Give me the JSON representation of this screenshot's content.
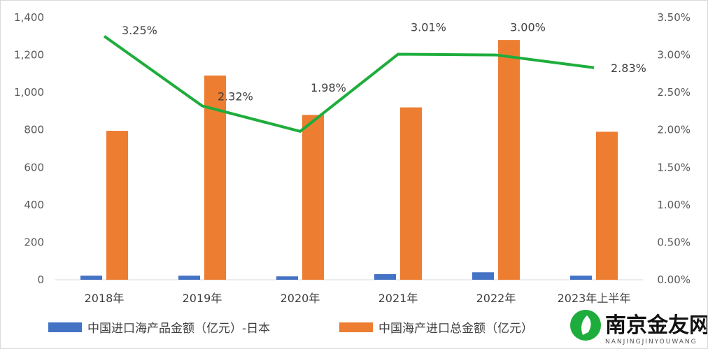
{
  "chart_data": {
    "type": "bar+line",
    "categories": [
      "2018年",
      "2019年",
      "2020年",
      "2021年",
      "2022年",
      "2023年上半年"
    ],
    "series": [
      {
        "name": "中国进口海产品金额（亿元）-日本",
        "type": "bar",
        "axis": "left",
        "color": "#4472c4",
        "values": [
          22,
          22,
          18,
          30,
          40,
          22
        ]
      },
      {
        "name": "中国海产进口总金额（亿元）",
        "type": "bar",
        "axis": "left",
        "color": "#ed7d31",
        "values": [
          795,
          1090,
          880,
          920,
          1280,
          790
        ]
      },
      {
        "type": "line",
        "axis": "right",
        "color": "#1ead3c",
        "values": [
          3.25,
          2.32,
          1.98,
          3.01,
          3.0,
          2.83
        ],
        "labels": [
          "3.25%",
          "2.32%",
          "1.98%",
          "3.01%",
          "3.00%",
          "2.83%"
        ]
      }
    ],
    "y_left": {
      "range": [
        0,
        1400
      ],
      "ticks": [
        "0",
        "200",
        "400",
        "600",
        "800",
        "1,000",
        "1,200",
        "1,400"
      ]
    },
    "y_right": {
      "range": [
        0,
        3.5
      ],
      "ticks": [
        "0.00%",
        "0.50%",
        "1.00%",
        "1.50%",
        "2.00%",
        "2.50%",
        "3.00%",
        "3.50%"
      ]
    },
    "grid": false,
    "legend_position": "bottom"
  },
  "watermark": {
    "text_cn": "南京金友网",
    "text_en": "NANJINGJINYOUWANG",
    "color": "#1ead3c"
  }
}
